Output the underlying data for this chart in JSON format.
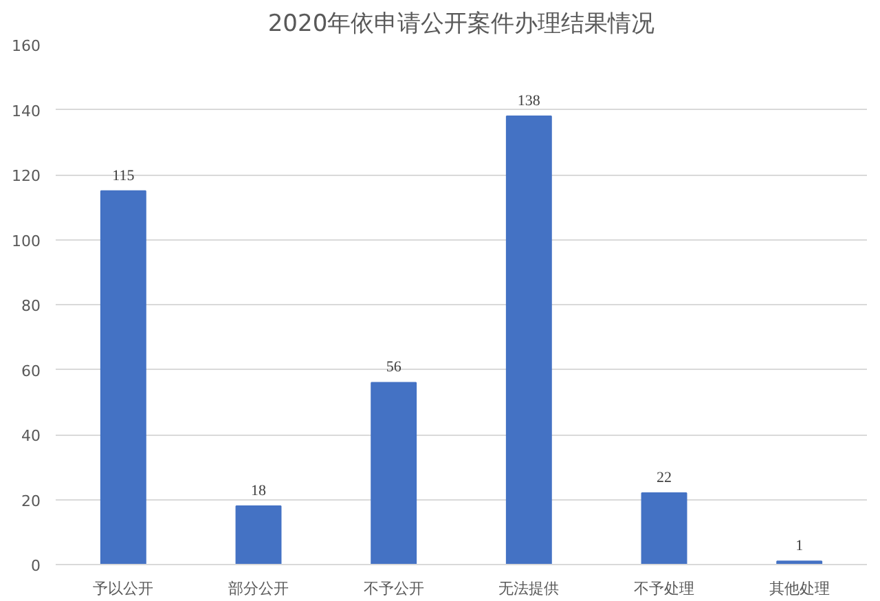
{
  "chart_data": {
    "type": "bar",
    "title": "2020年依申请公开案件办理结果情况",
    "categories": [
      "予以公开",
      "部分公开",
      "不予公开",
      "无法提供",
      "不予处理",
      "其他处理"
    ],
    "values": [
      115,
      18,
      56,
      138,
      22,
      1
    ],
    "color": "#4472c4",
    "ylim": [
      0,
      160
    ],
    "yticks": [
      0,
      20,
      40,
      60,
      80,
      100,
      120,
      140,
      160
    ],
    "grid": "y",
    "data_labels": true
  }
}
